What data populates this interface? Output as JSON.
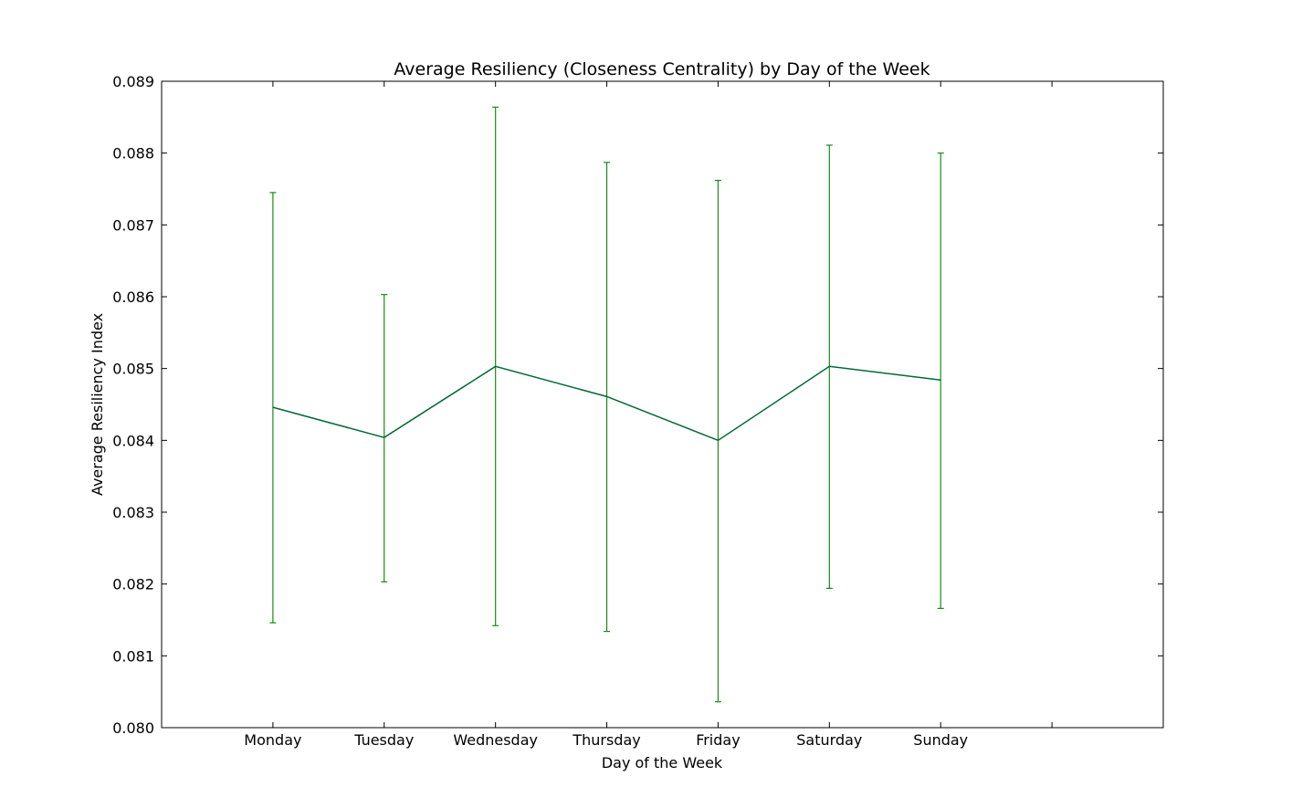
{
  "chart_data": {
    "type": "line",
    "title": "Average Resiliency (Closeness Centrality) by Day of the Week",
    "xlabel": "Day of the Week",
    "ylabel": "Average Resiliency Index",
    "categories": [
      "Monday",
      "Tuesday",
      "Wednesday",
      "Thursday",
      "Friday",
      "Saturday",
      "Sunday"
    ],
    "x_positions": [
      1,
      2,
      3,
      4,
      5,
      6,
      7
    ],
    "xlim": [
      0,
      9
    ],
    "ylim": [
      0.08,
      0.089
    ],
    "yticks": [
      "0.080",
      "0.081",
      "0.082",
      "0.083",
      "0.084",
      "0.085",
      "0.086",
      "0.087",
      "0.088",
      "0.089"
    ],
    "series": [
      {
        "values": [
          0.08446,
          0.08404,
          0.08503,
          0.08461,
          0.084,
          0.08503,
          0.08484
        ],
        "error_lower": [
          0.08146,
          0.08203,
          0.08142,
          0.08134,
          0.08036,
          0.08194,
          0.08166
        ],
        "error_upper": [
          0.08745,
          0.08603,
          0.08864,
          0.08787,
          0.08762,
          0.08811,
          0.088
        ],
        "color": "#006a30",
        "errorbar_color": "#1a8a1a"
      }
    ],
    "grid": false,
    "legend": false
  }
}
